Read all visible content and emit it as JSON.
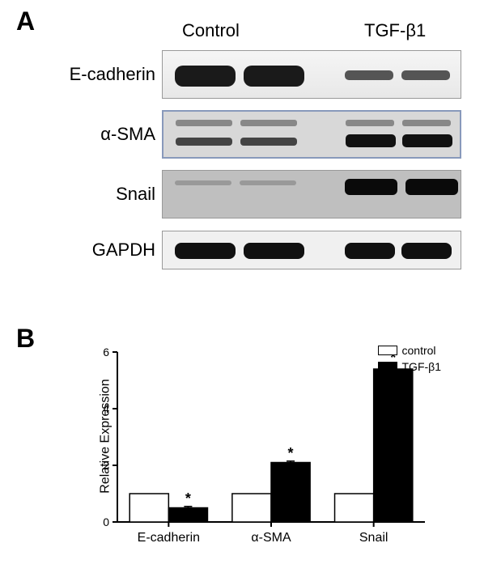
{
  "panelA": {
    "label": "A",
    "headers": {
      "control": "Control",
      "tgfb1": "TGF-β1"
    },
    "rows": [
      {
        "label": "E-cadherin"
      },
      {
        "label": "α-SMA"
      },
      {
        "label": "Snail"
      },
      {
        "label": "GAPDH"
      }
    ]
  },
  "panelB": {
    "label": "B",
    "chart": {
      "type": "bar",
      "ylabel": "Relative Expression",
      "ylim": [
        0,
        6
      ],
      "ytick_step": 2,
      "yticks": [
        0,
        2,
        4,
        6
      ],
      "categories": [
        "E-cadherin",
        "α-SMA",
        "Snail"
      ],
      "series": [
        {
          "name": "control",
          "color": "#ffffff",
          "values": [
            1.0,
            1.0,
            1.0
          ],
          "errors": [
            0,
            0,
            0
          ]
        },
        {
          "name": "TGF-β1",
          "color": "#000000",
          "values": [
            0.5,
            2.1,
            5.4
          ],
          "errors": [
            0.05,
            0.05,
            0.12
          ]
        }
      ],
      "significance": [
        {
          "category_index": 0,
          "series_index": 1,
          "marker": "*"
        },
        {
          "category_index": 1,
          "series_index": 1,
          "marker": "*"
        },
        {
          "category_index": 2,
          "series_index": 1,
          "marker": "*"
        }
      ],
      "bar_width": 0.38,
      "axis_color": "#000000",
      "text_color": "#000000",
      "background_color": "#ffffff",
      "label_fontsize": 16,
      "tick_fontsize": 14,
      "legend": {
        "items": [
          {
            "label": "control",
            "color": "#ffffff"
          },
          {
            "label": "TGF-β1",
            "color": "#000000"
          }
        ]
      }
    }
  }
}
